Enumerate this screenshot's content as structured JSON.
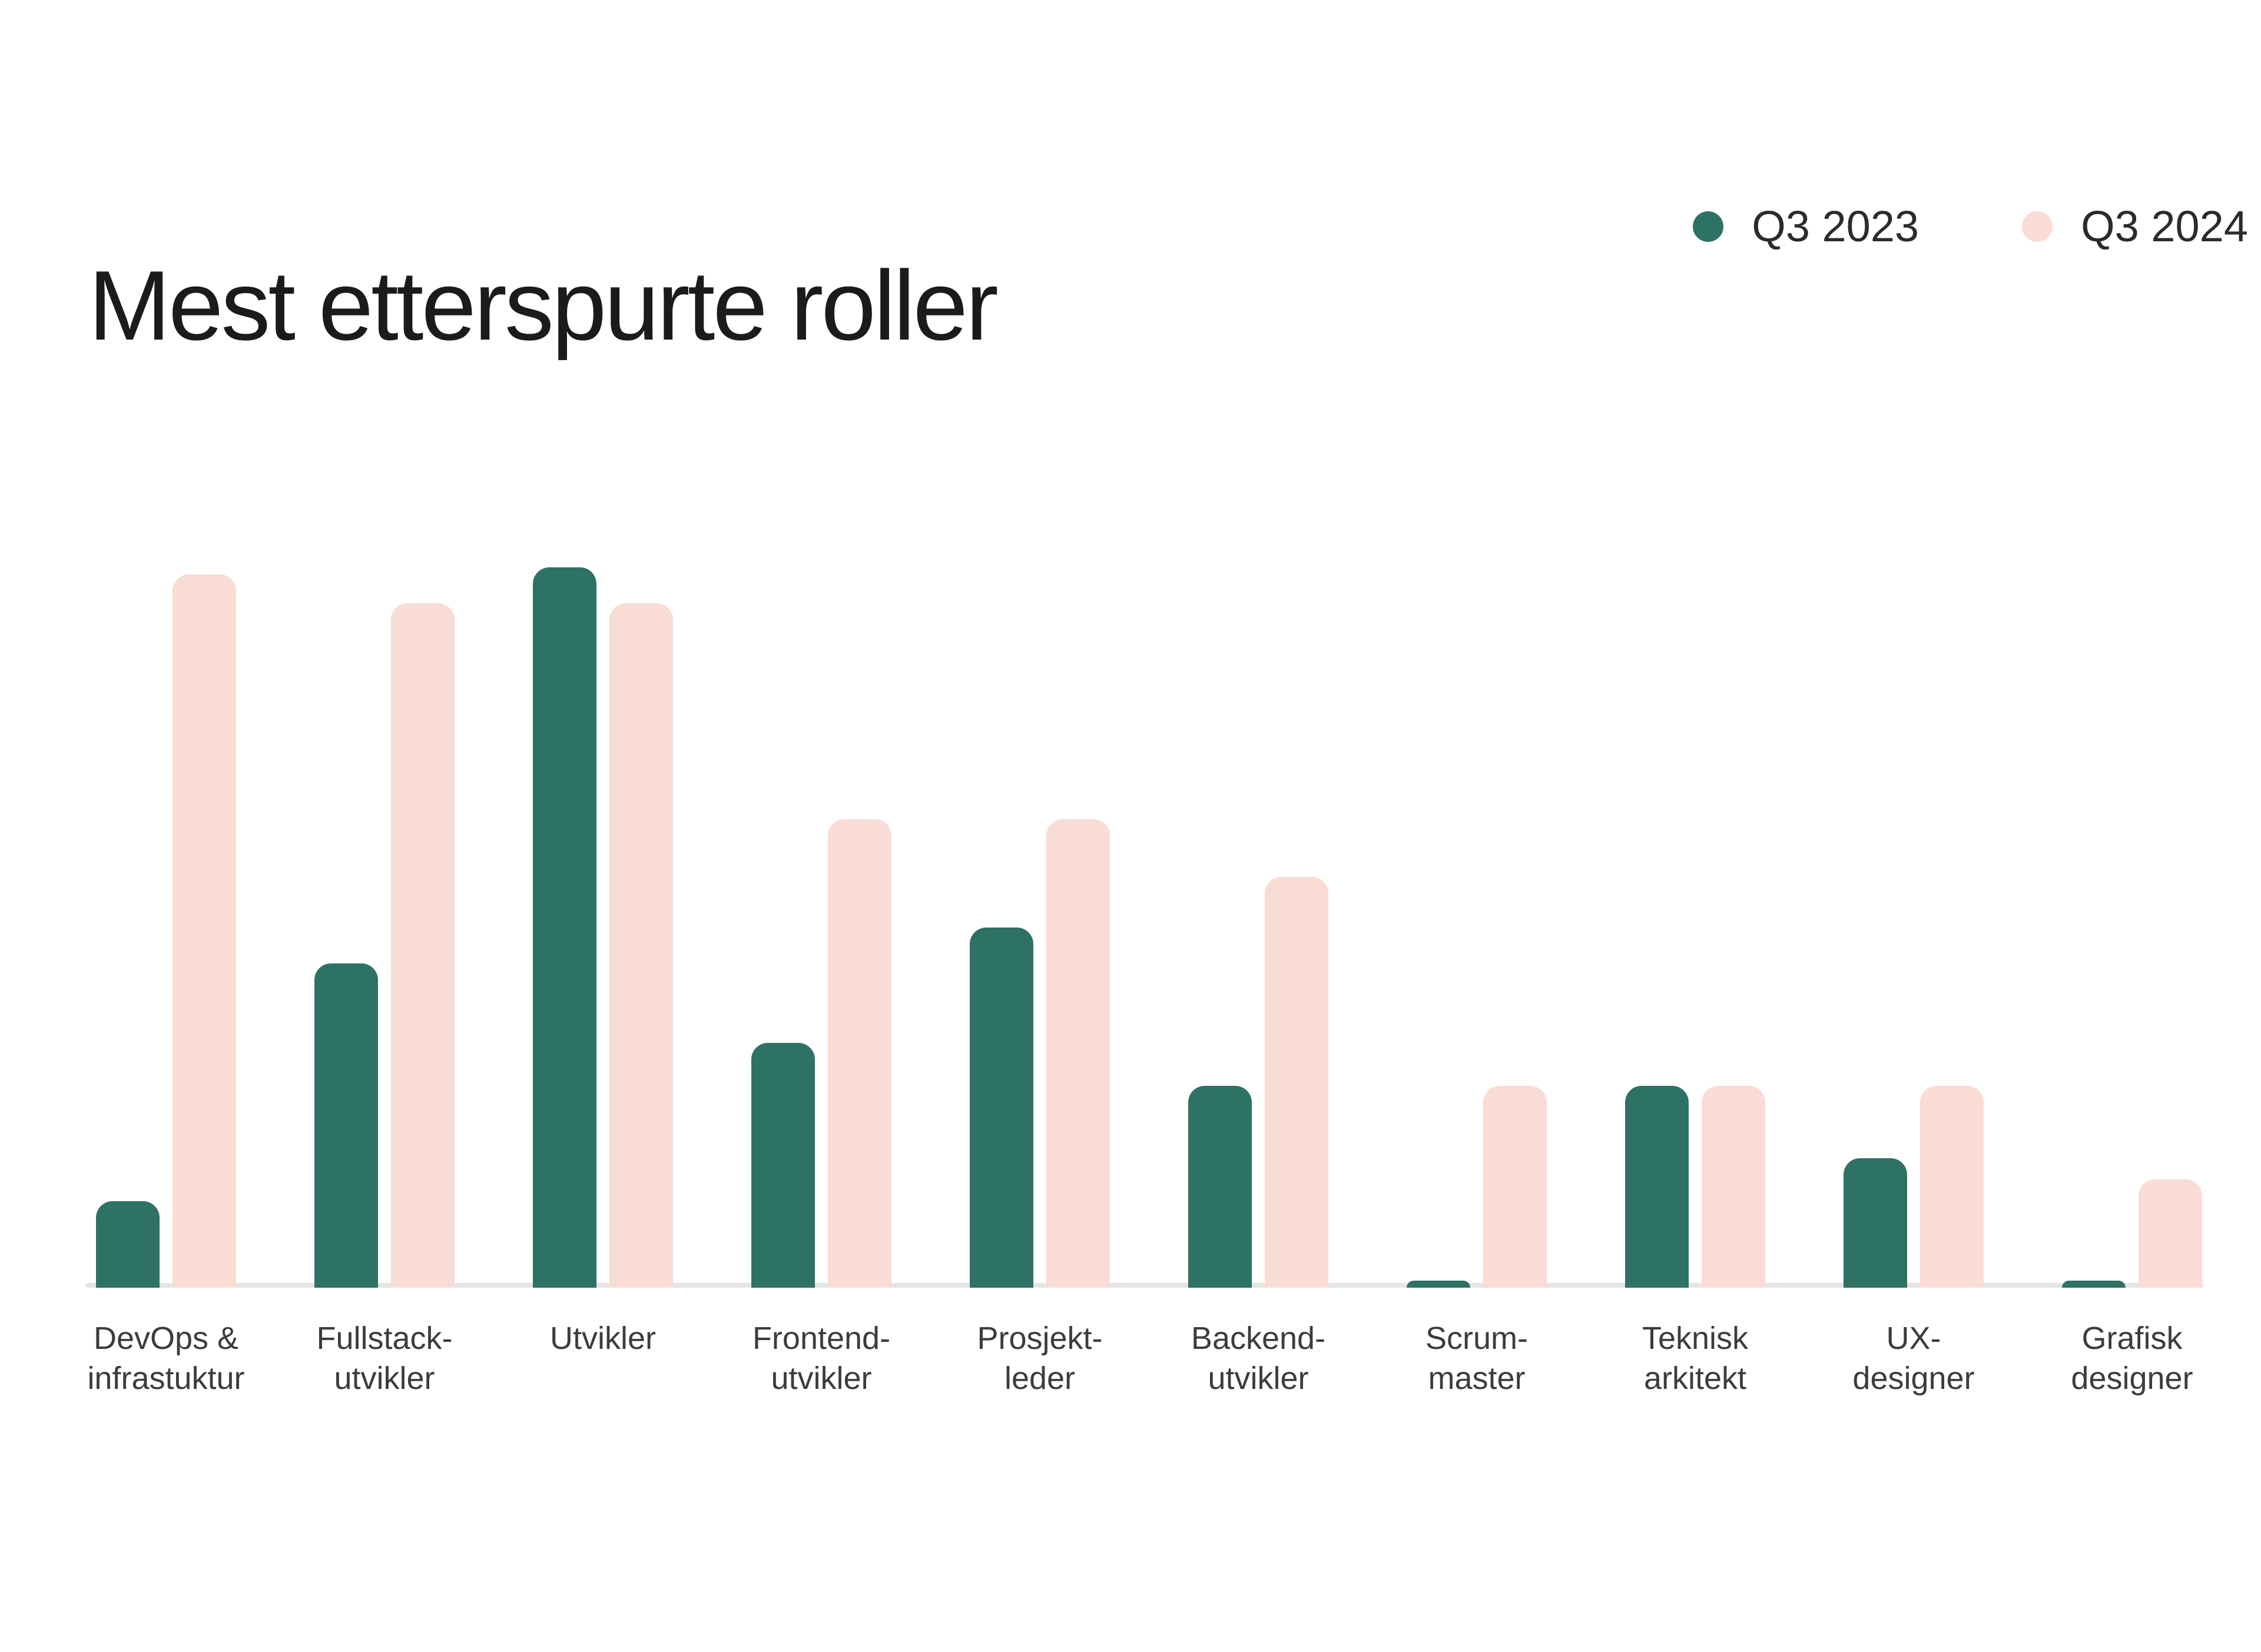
{
  "chart_data": {
    "type": "bar",
    "title": "Mest etterspurte roller",
    "categories": [
      "DevOps &\ninfrastuktur",
      "Fullstack-\nutvikler",
      "Utvikler",
      "Frontend-\nutvikler",
      "Prosjekt-\nleder",
      "Backend-\nutvikler",
      "Scrum-\nmaster",
      "Teknisk\narkitekt",
      "UX-\ndesigner",
      "Grafisk\ndesigner"
    ],
    "series": [
      {
        "name": "Q3 2023",
        "color": "#2E7165",
        "values": [
          12,
          45,
          100,
          34,
          50,
          28,
          1,
          28,
          18,
          1
        ]
      },
      {
        "name": "Q3 2024",
        "color": "#F9DCD4",
        "values": [
          99,
          95,
          95,
          65,
          65,
          57,
          28,
          28,
          28,
          15
        ]
      }
    ],
    "ylim": [
      0,
      100
    ],
    "value_unit": "relative height, % of tallest bar (no y-axis shown in source)",
    "grid": false,
    "y_axis_shown": false,
    "legend_position": "top-right"
  },
  "legend": [
    {
      "label": "Q3 2023",
      "color": "#2E7165"
    },
    {
      "label": "Q3 2024",
      "color": "#F9DCD4"
    }
  ],
  "colors": {
    "background": "#FFFFFF",
    "title_text": "#1B1B1B",
    "label_text": "#3C3C3C",
    "legend_text": "#2B2B2B",
    "axis_line": "#E5E5E5",
    "series_2023": "#2E7165",
    "series_2024": "#F9DCD4"
  }
}
